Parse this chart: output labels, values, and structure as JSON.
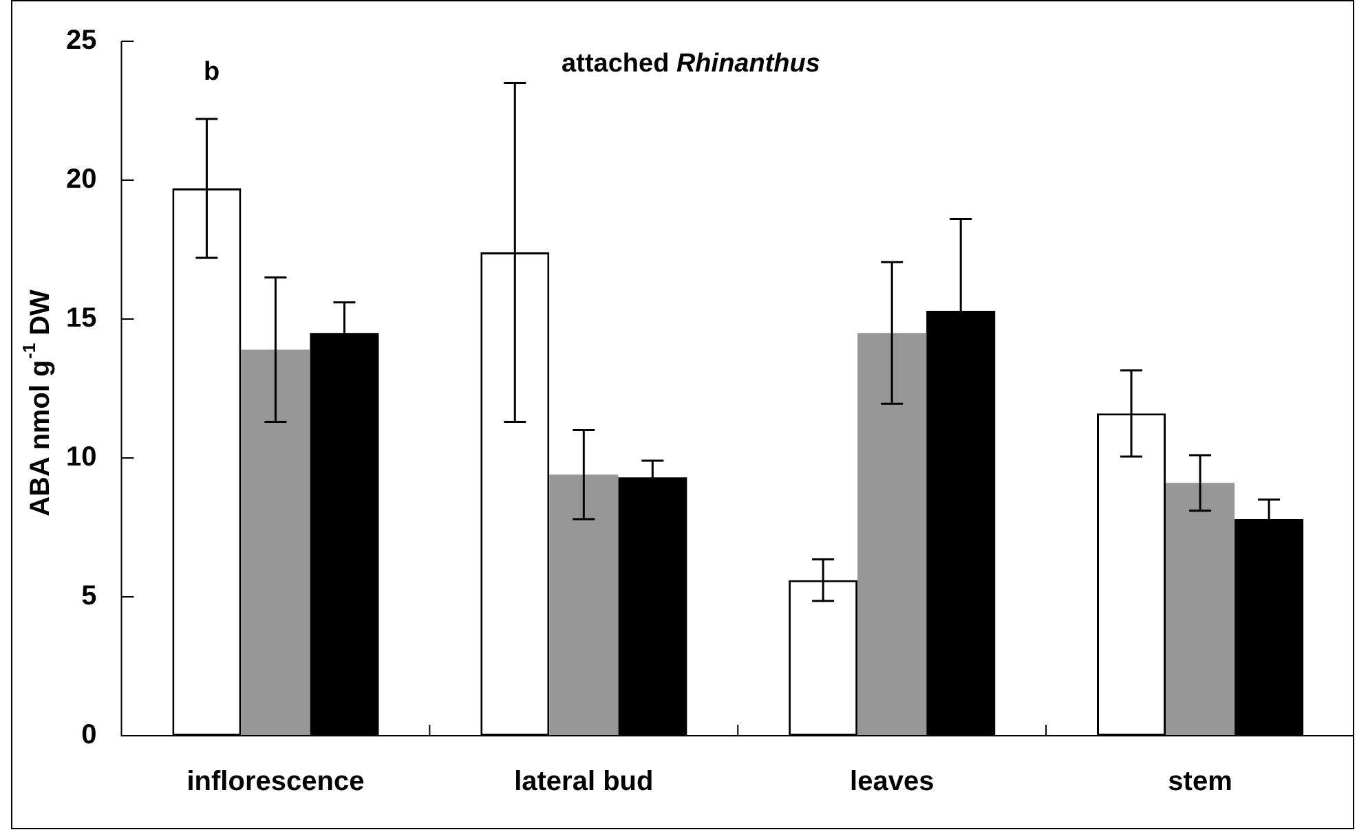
{
  "chart_data": {
    "type": "bar",
    "title": "attached Rhinanthus",
    "ylabel": "ABA nmol g$^{-1}$ DW",
    "annotations": [
      "b"
    ],
    "categories": [
      "inflorescence",
      "lateral bud",
      "leaves",
      "stem"
    ],
    "series": [
      {
        "color": "#ffffff",
        "values": [
          19.7,
          17.4,
          5.6,
          11.6
        ],
        "errors": [
          2.5,
          6.1,
          0.75,
          1.55
        ]
      },
      {
        "color": "#969696",
        "values": [
          13.9,
          9.4,
          14.5,
          9.1
        ],
        "errors": [
          2.6,
          1.6,
          2.55,
          1.0
        ]
      },
      {
        "color": "#000000",
        "values": [
          14.5,
          9.3,
          15.3,
          7.8
        ],
        "errors": [
          1.1,
          0.6,
          3.3,
          0.7
        ]
      }
    ],
    "ylim": [
      0,
      25
    ],
    "yticks": [
      0,
      5,
      10,
      15,
      20,
      25
    ],
    "grid": false,
    "legend": false
  }
}
